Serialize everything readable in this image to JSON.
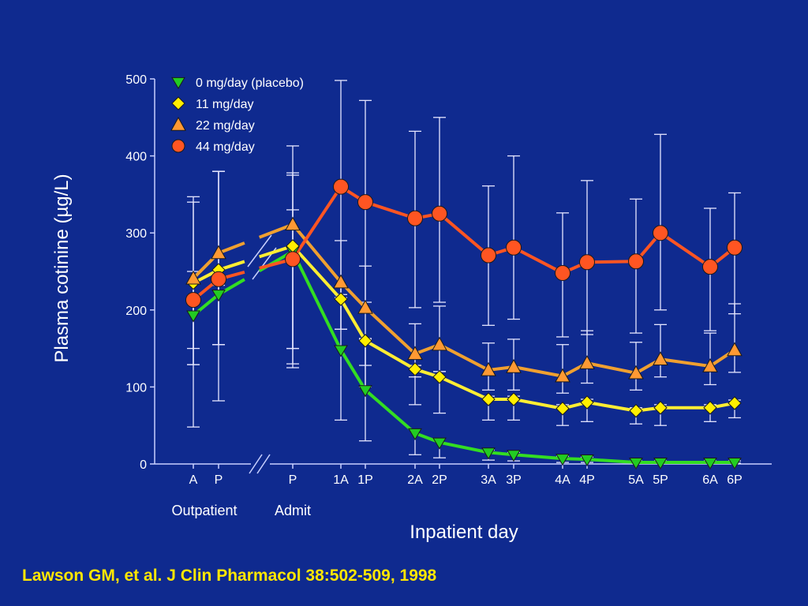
{
  "colors": {
    "background": "#0f2a8f",
    "axis": "#c8d0ff",
    "error_bars": "#e6e6ff",
    "text": "#ffffff",
    "citation": "#ffe600"
  },
  "citation": "Lawson GM, et al. J Clin Pharmacol 38:502-509, 1998",
  "chart_data": {
    "type": "line",
    "title": "",
    "xlabel": "Inpatient day",
    "ylabel": "Plasma cotinine (µg/L)",
    "ylim": [
      0,
      500
    ],
    "yticks": [
      0,
      100,
      200,
      300,
      400,
      500
    ],
    "grid": false,
    "legend_position": "top-left",
    "axis_break": "between outpatient P and admit P",
    "categories": [
      "A",
      "P",
      "P",
      "1A",
      "1P",
      "2A",
      "2P",
      "3A",
      "3P",
      "4A",
      "4P",
      "5A",
      "5P",
      "6A",
      "6P"
    ],
    "group_labels": [
      {
        "label": "Outpatient",
        "spans": [
          "A",
          "P"
        ]
      },
      {
        "label": "Admit",
        "spans": [
          "P"
        ]
      }
    ],
    "series": [
      {
        "name": "0 mg/day (placebo)",
        "marker": "triangle-down",
        "color": "#33dd22",
        "fill": "#22cc22",
        "values": [
          193,
          220,
          276,
          148,
          96,
          40,
          28,
          15,
          12,
          7,
          6,
          2,
          2,
          2,
          2
        ],
        "err_upper": [
          213,
          232,
          375,
          216,
          162,
          45,
          33,
          18,
          15,
          10,
          9,
          4,
          4,
          4,
          4
        ],
        "err_lower": [
          129,
          155,
          150,
          57,
          30,
          12,
          8,
          5,
          4,
          2,
          2,
          1,
          1,
          1,
          1
        ]
      },
      {
        "name": "11 mg/day",
        "marker": "diamond",
        "color": "#ffee33",
        "fill": "#ffee00",
        "values": [
          235,
          252,
          283,
          214,
          160,
          123,
          113,
          84,
          84,
          72,
          80,
          69,
          73,
          73,
          79
        ],
        "err_upper": [
          250,
          380,
          330,
          230,
          163,
          128,
          120,
          88,
          88,
          77,
          84,
          73,
          77,
          77,
          83
        ],
        "err_lower": [
          48,
          82,
          125,
          175,
          100,
          77,
          66,
          57,
          57,
          50,
          55,
          52,
          50,
          55,
          60
        ]
      },
      {
        "name": "22 mg/day",
        "marker": "triangle-up",
        "color": "#f0a030",
        "fill": "#ff9933",
        "values": [
          241,
          274,
          311,
          236,
          203,
          143,
          155,
          122,
          126,
          114,
          131,
          118,
          136,
          127,
          148
        ],
        "err_upper": [
          347,
          380,
          413,
          290,
          257,
          182,
          205,
          157,
          162,
          155,
          173,
          158,
          181,
          170,
          208
        ],
        "err_lower": [
          129,
          155,
          150,
          175,
          128,
          113,
          120,
          96,
          96,
          92,
          105,
          96,
          113,
          103,
          119
        ]
      },
      {
        "name": "44 mg/day",
        "marker": "circle",
        "color": "#ff5522",
        "fill": "#ff5522",
        "values": [
          213,
          240,
          266,
          360,
          340,
          319,
          325,
          271,
          281,
          248,
          262,
          263,
          300,
          256,
          281
        ],
        "err_upper": [
          340,
          380,
          378,
          498,
          472,
          432,
          450,
          361,
          400,
          326,
          368,
          344,
          428,
          332,
          352
        ],
        "err_lower": [
          150,
          155,
          130,
          220,
          210,
          203,
          210,
          180,
          188,
          165,
          168,
          170,
          200,
          173,
          195
        ]
      }
    ]
  }
}
